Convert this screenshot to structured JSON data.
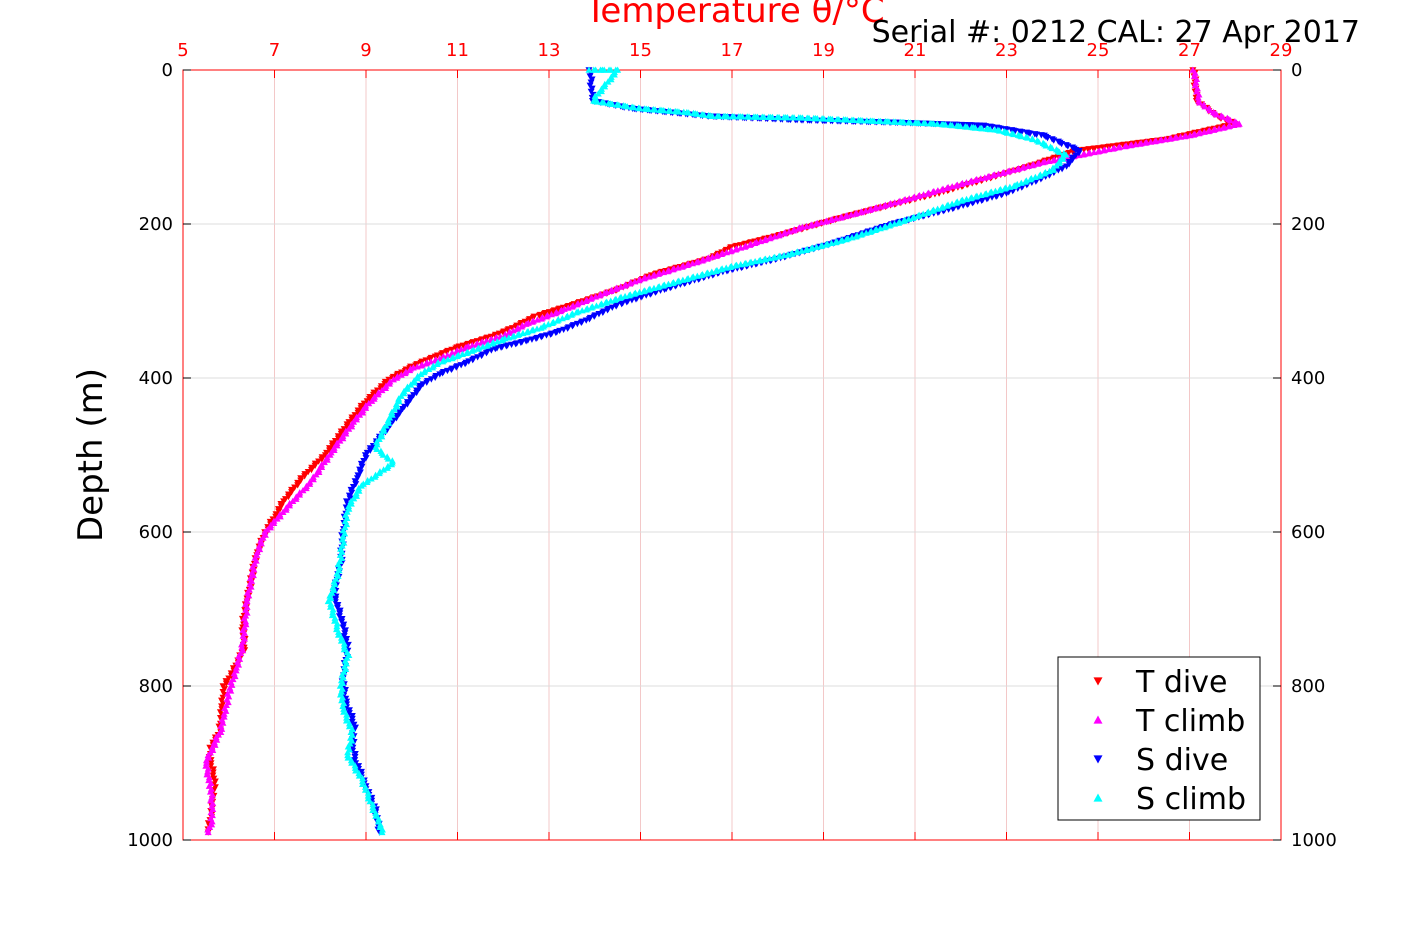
{
  "chart_data": {
    "type": "scatter",
    "title": "Temperature θ/°C",
    "annotation": "Serial #: 0212  CAL: 27 Apr 2017",
    "xlabel": "Temperature θ/°C",
    "ylabel": "Depth (m)",
    "xlim": [
      5,
      29
    ],
    "ylim": [
      0,
      1000
    ],
    "y_reversed": true,
    "x_ticks": [
      "5",
      "7",
      "9",
      "11",
      "13",
      "15",
      "17",
      "19",
      "21",
      "23",
      "25",
      "27",
      "29"
    ],
    "y_ticks": [
      "0",
      "200",
      "400",
      "600",
      "800",
      "1000"
    ],
    "x_axis_position": "top",
    "grid": true,
    "legend_position": "bottom-right",
    "series": [
      {
        "name": "T dive",
        "color": "#ff0000",
        "marker": "triangle-down",
        "points": [
          [
            27.1,
            0
          ],
          [
            27.15,
            40
          ],
          [
            27.6,
            60
          ],
          [
            28.0,
            70
          ],
          [
            26.5,
            90
          ],
          [
            24.5,
            105
          ],
          [
            23.5,
            125
          ],
          [
            21.5,
            160
          ],
          [
            19.5,
            190
          ],
          [
            18.0,
            215
          ],
          [
            17.0,
            230
          ],
          [
            16.5,
            245
          ],
          [
            15.3,
            265
          ],
          [
            14.5,
            285
          ],
          [
            13.5,
            305
          ],
          [
            12.7,
            320
          ],
          [
            12.2,
            335
          ],
          [
            11.8,
            345
          ],
          [
            11.0,
            360
          ],
          [
            10.5,
            372
          ],
          [
            10.0,
            385
          ],
          [
            9.5,
            402
          ],
          [
            9.0,
            430
          ],
          [
            8.6,
            460
          ],
          [
            8.1,
            500
          ],
          [
            7.6,
            530
          ],
          [
            7.2,
            560
          ],
          [
            7.0,
            580
          ],
          [
            6.8,
            600
          ],
          [
            6.6,
            630
          ],
          [
            6.5,
            660
          ],
          [
            6.4,
            690
          ],
          [
            6.3,
            720
          ],
          [
            6.35,
            750
          ],
          [
            6.1,
            780
          ],
          [
            5.9,
            800
          ],
          [
            5.85,
            830
          ],
          [
            5.8,
            860
          ],
          [
            5.6,
            880
          ],
          [
            5.6,
            900
          ],
          [
            5.7,
            920
          ],
          [
            5.65,
            950
          ],
          [
            5.6,
            970
          ],
          [
            5.55,
            990
          ]
        ]
      },
      {
        "name": "T climb",
        "color": "#ff00ff",
        "marker": "triangle-up",
        "points": [
          [
            27.1,
            0
          ],
          [
            27.2,
            40
          ],
          [
            27.5,
            55
          ],
          [
            28.1,
            70
          ],
          [
            27.0,
            85
          ],
          [
            25.5,
            100
          ],
          [
            23.8,
            120
          ],
          [
            22.5,
            140
          ],
          [
            21.0,
            165
          ],
          [
            19.8,
            185
          ],
          [
            18.5,
            205
          ],
          [
            17.5,
            225
          ],
          [
            16.2,
            250
          ],
          [
            15.0,
            272
          ],
          [
            14.2,
            290
          ],
          [
            13.3,
            312
          ],
          [
            12.5,
            330
          ],
          [
            12.0,
            345
          ],
          [
            11.2,
            360
          ],
          [
            10.6,
            375
          ],
          [
            10.0,
            388
          ],
          [
            9.6,
            402
          ],
          [
            9.1,
            430
          ],
          [
            8.7,
            460
          ],
          [
            8.2,
            500
          ],
          [
            7.8,
            535
          ],
          [
            7.4,
            560
          ],
          [
            7.1,
            580
          ],
          [
            6.8,
            600
          ],
          [
            6.6,
            630
          ],
          [
            6.5,
            660
          ],
          [
            6.4,
            690
          ],
          [
            6.35,
            720
          ],
          [
            6.3,
            750
          ],
          [
            6.15,
            780
          ],
          [
            6.0,
            810
          ],
          [
            5.9,
            840
          ],
          [
            5.8,
            860
          ],
          [
            5.65,
            880
          ],
          [
            5.5,
            900
          ],
          [
            5.6,
            930
          ],
          [
            5.65,
            960
          ],
          [
            5.6,
            980
          ],
          [
            5.55,
            990
          ]
        ]
      },
      {
        "name": "S dive",
        "color": "#0000ff",
        "marker": "triangle-down",
        "points": [
          [
            13.9,
            0
          ],
          [
            13.95,
            40
          ],
          [
            14.8,
            50
          ],
          [
            16.5,
            60
          ],
          [
            18.5,
            65
          ],
          [
            20.5,
            68
          ],
          [
            22.5,
            72
          ],
          [
            23.8,
            85
          ],
          [
            24.6,
            105
          ],
          [
            24.3,
            125
          ],
          [
            23.8,
            140
          ],
          [
            23.0,
            160
          ],
          [
            21.8,
            180
          ],
          [
            20.5,
            200
          ],
          [
            19.2,
            225
          ],
          [
            18.0,
            245
          ],
          [
            16.8,
            262
          ],
          [
            15.5,
            285
          ],
          [
            14.5,
            305
          ],
          [
            13.8,
            325
          ],
          [
            13.2,
            340
          ],
          [
            12.5,
            352
          ],
          [
            11.8,
            362
          ],
          [
            11.2,
            380
          ],
          [
            10.6,
            395
          ],
          [
            10.2,
            410
          ],
          [
            9.8,
            440
          ],
          [
            9.4,
            470
          ],
          [
            9.0,
            500
          ],
          [
            8.8,
            530
          ],
          [
            8.6,
            560
          ],
          [
            8.5,
            600
          ],
          [
            8.45,
            640
          ],
          [
            8.3,
            680
          ],
          [
            8.5,
            720
          ],
          [
            8.6,
            750
          ],
          [
            8.5,
            790
          ],
          [
            8.55,
            820
          ],
          [
            8.75,
            850
          ],
          [
            8.7,
            880
          ],
          [
            8.8,
            900
          ],
          [
            9.0,
            930
          ],
          [
            9.2,
            960
          ],
          [
            9.3,
            990
          ]
        ]
      },
      {
        "name": "S climb",
        "color": "#00ffff",
        "marker": "triangle-up",
        "points": [
          [
            13.9,
            0
          ],
          [
            14.5,
            0
          ],
          [
            13.95,
            40
          ],
          [
            15.0,
            50
          ],
          [
            16.0,
            55
          ],
          [
            16.6,
            60
          ],
          [
            18.5,
            62
          ],
          [
            20.0,
            66
          ],
          [
            21.5,
            70
          ],
          [
            22.8,
            78
          ],
          [
            23.6,
            90
          ],
          [
            24.3,
            110
          ],
          [
            24.0,
            130
          ],
          [
            23.2,
            150
          ],
          [
            22.0,
            170
          ],
          [
            20.8,
            195
          ],
          [
            19.5,
            220
          ],
          [
            18.2,
            240
          ],
          [
            17.0,
            255
          ],
          [
            15.8,
            275
          ],
          [
            14.6,
            295
          ],
          [
            13.6,
            315
          ],
          [
            12.8,
            335
          ],
          [
            12.0,
            350
          ],
          [
            11.3,
            365
          ],
          [
            10.6,
            380
          ],
          [
            10.2,
            395
          ],
          [
            9.8,
            420
          ],
          [
            9.5,
            455
          ],
          [
            9.2,
            490
          ],
          [
            9.6,
            510
          ],
          [
            8.9,
            540
          ],
          [
            8.6,
            570
          ],
          [
            8.5,
            610
          ],
          [
            8.4,
            650
          ],
          [
            8.2,
            690
          ],
          [
            8.4,
            730
          ],
          [
            8.6,
            760
          ],
          [
            8.45,
            800
          ],
          [
            8.5,
            830
          ],
          [
            8.7,
            860
          ],
          [
            8.6,
            890
          ],
          [
            8.9,
            920
          ],
          [
            9.1,
            950
          ],
          [
            9.3,
            980
          ],
          [
            9.35,
            990
          ]
        ]
      }
    ]
  }
}
